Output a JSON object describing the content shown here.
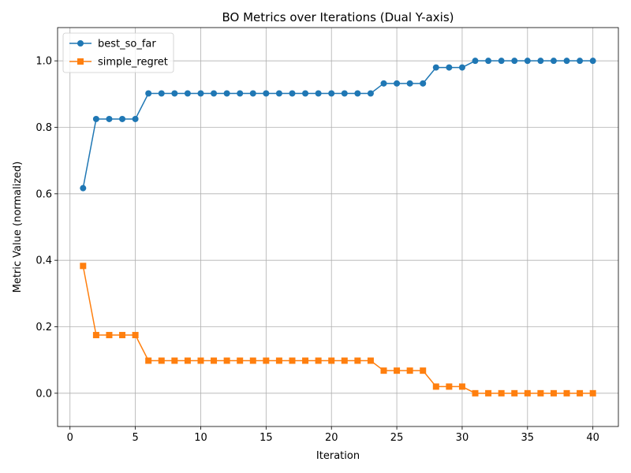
{
  "chart_data": {
    "type": "line",
    "title": "BO Metrics over Iterations (Dual Y-axis)",
    "xlabel": "Iteration",
    "ylabel": "Metric Value (normalized)",
    "xlim": [
      -0.95,
      41.95
    ],
    "ylim": [
      -0.1,
      1.1
    ],
    "xticks": [
      0,
      5,
      10,
      15,
      20,
      25,
      30,
      35,
      40
    ],
    "yticks": [
      0.0,
      0.2,
      0.4,
      0.6,
      0.8,
      1.0
    ],
    "xtick_labels": [
      "0",
      "5",
      "10",
      "15",
      "20",
      "25",
      "30",
      "35",
      "40"
    ],
    "ytick_labels": [
      "0.0",
      "0.2",
      "0.4",
      "0.6",
      "0.8",
      "1.0"
    ],
    "grid": true,
    "legend_position": "top-left",
    "x": [
      1,
      2,
      3,
      4,
      5,
      6,
      7,
      8,
      9,
      10,
      11,
      12,
      13,
      14,
      15,
      16,
      17,
      18,
      19,
      20,
      21,
      22,
      23,
      24,
      25,
      26,
      27,
      28,
      29,
      30,
      31,
      32,
      33,
      34,
      35,
      36,
      37,
      38,
      39,
      40
    ],
    "series": [
      {
        "name": "best_so_far",
        "color": "#1f77b4",
        "marker": "circle",
        "values": [
          0.617,
          0.825,
          0.825,
          0.825,
          0.825,
          0.902,
          0.902,
          0.902,
          0.902,
          0.902,
          0.902,
          0.902,
          0.902,
          0.902,
          0.902,
          0.902,
          0.902,
          0.902,
          0.902,
          0.902,
          0.902,
          0.902,
          0.902,
          0.932,
          0.932,
          0.932,
          0.932,
          0.98,
          0.98,
          0.98,
          1.0,
          1.0,
          1.0,
          1.0,
          1.0,
          1.0,
          1.0,
          1.0,
          1.0,
          1.0
        ]
      },
      {
        "name": "simple_regret",
        "color": "#ff7f0e",
        "marker": "square",
        "values": [
          0.383,
          0.175,
          0.175,
          0.175,
          0.175,
          0.098,
          0.098,
          0.098,
          0.098,
          0.098,
          0.098,
          0.098,
          0.098,
          0.098,
          0.098,
          0.098,
          0.098,
          0.098,
          0.098,
          0.098,
          0.098,
          0.098,
          0.098,
          0.068,
          0.068,
          0.068,
          0.068,
          0.02,
          0.02,
          0.02,
          0.0,
          0.0,
          0.0,
          0.0,
          0.0,
          0.0,
          0.0,
          0.0,
          0.0,
          0.0
        ]
      }
    ]
  }
}
